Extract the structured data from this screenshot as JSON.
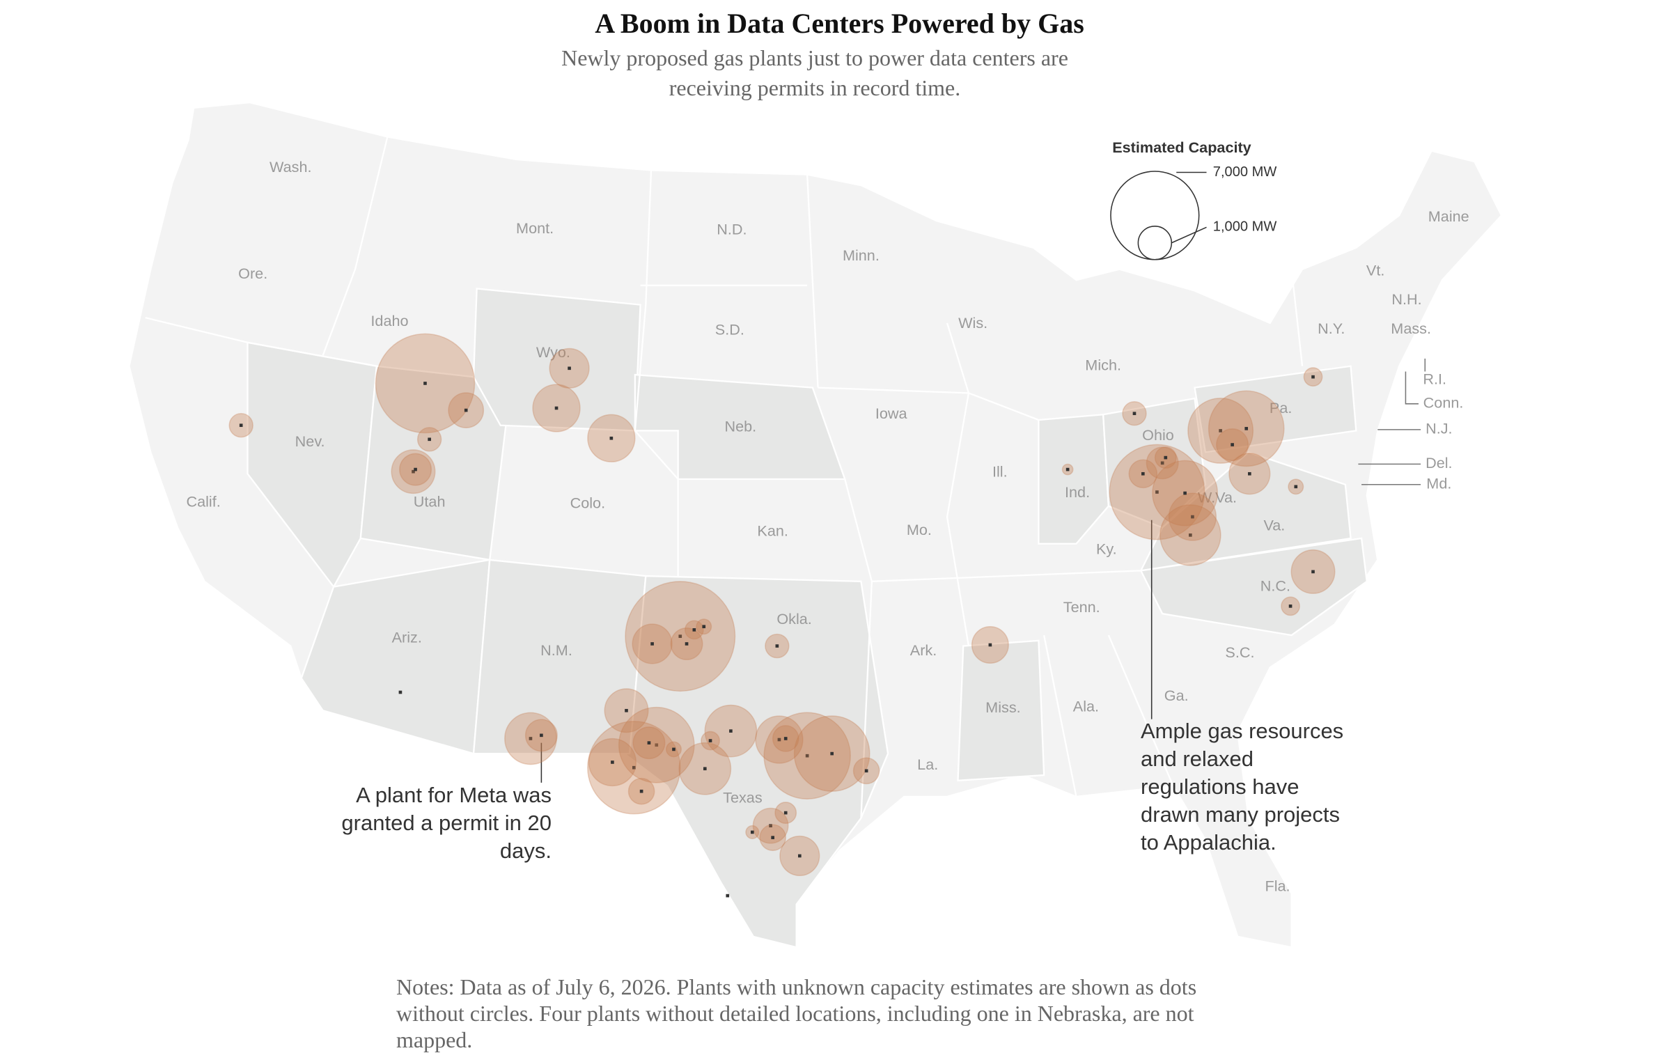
{
  "header": {
    "title": "A Boom in Data Centers Powered by Gas",
    "subtitle": "Newly proposed gas plants just to power data centers are receiving permits in record time."
  },
  "legend": {
    "title": "Estimated Capacity",
    "sizes": [
      {
        "value": 7000,
        "label": "7,000 MW"
      },
      {
        "value": 1000,
        "label": "1,000 MW"
      }
    ]
  },
  "map": {
    "color": "#c47a4e",
    "state_labels": [
      "Wash.",
      "Ore.",
      "Calif.",
      "Idaho",
      "Nev.",
      "Mont.",
      "Wyo.",
      "Utah",
      "Colo.",
      "Ariz.",
      "N.M.",
      "N.D.",
      "S.D.",
      "Neb.",
      "Kan.",
      "Okla.",
      "Texas",
      "Minn.",
      "Iowa",
      "Mo.",
      "Ark.",
      "La.",
      "Wis.",
      "Ill.",
      "Miss.",
      "Mich.",
      "Ind.",
      "Ohio",
      "Ky.",
      "Tenn.",
      "Ala.",
      "Ga.",
      "Fla.",
      "S.C.",
      "N.C.",
      "Va.",
      "W.Va.",
      "Pa.",
      "N.Y.",
      "Vt.",
      "N.H.",
      "Mass.",
      "Maine",
      "R.I.",
      "Conn.",
      "N.J.",
      "Del.",
      "Md."
    ],
    "capacities_mw": [
      500,
      8800,
      1100,
      500,
      1700,
      900,
      1400,
      2000,
      2000,
      10800,
      1400,
      900,
      300,
      200,
      500,
      1200,
      2400,
      900,
      1700,
      5100,
      7700,
      2000,
      900,
      200,
      600,
      2400,
      2400,
      300,
      6700,
      5100,
      2000,
      600,
      600,
      1100,
      600,
      400,
      1400,
      150,
      500,
      100,
      8100,
      900,
      400,
      700,
      3300,
      2000,
      3800,
      3800,
      5100,
      900,
      1500,
      300,
      200,
      1700,
      300,
      null,
      null
    ]
  },
  "annotations": [
    "A plant for Meta was granted a permit in 20 days.",
    "Ample gas resources and relaxed regulations have drawn many projects to Appalachia."
  ],
  "notes": "Notes: Data as of July 6, 2026. Plants with unknown capacity estimates are shown as dots without circles. Four plants without detailed locations, including one in Nebraska, are not mapped."
}
